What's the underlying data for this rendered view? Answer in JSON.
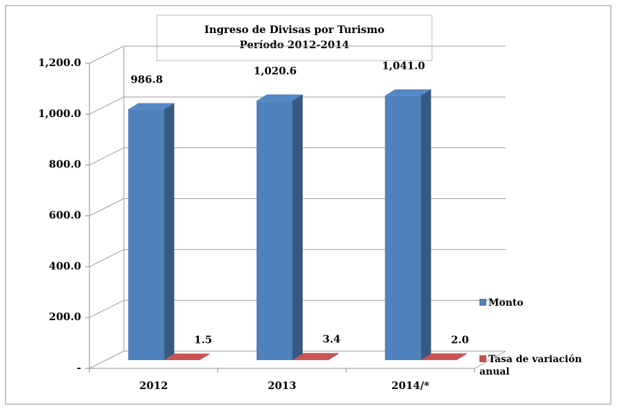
{
  "chart_data": {
    "type": "bar3d",
    "title": "Ingreso de Divisas  por Turismo",
    "subtitle": "Período 2012-2014",
    "categories": [
      "2012",
      "2013",
      "2014/*"
    ],
    "series": [
      {
        "name": "Monto",
        "color": "#4f81bd",
        "values": [
          986.8,
          1020.6,
          1041.0
        ],
        "value_labels": [
          "986.8",
          "1,020.6",
          "1,041.0"
        ]
      },
      {
        "name": "Tasa de variación anual",
        "color": "#c0504d",
        "values": [
          1.5,
          3.4,
          2.0
        ],
        "value_labels": [
          "1.5",
          "3.4",
          "2.0"
        ]
      }
    ],
    "ylim": [
      0,
      1200
    ],
    "yticks": [
      {
        "value": 0,
        "label": "-"
      },
      {
        "value": 200,
        "label": "200.0"
      },
      {
        "value": 400,
        "label": "400.0"
      },
      {
        "value": 600,
        "label": "600.0"
      },
      {
        "value": 800,
        "label": "800.0"
      },
      {
        "value": 1000,
        "label": "1,000.0"
      },
      {
        "value": 1200,
        "label": "1,200.0"
      }
    ],
    "grid": true,
    "legend": "right"
  }
}
